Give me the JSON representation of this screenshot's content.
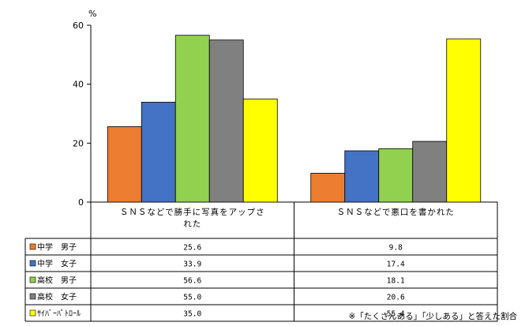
{
  "chart_data": {
    "type": "bar",
    "ylabel": "%",
    "ylim": [
      0,
      60
    ],
    "yticks": [
      0,
      20,
      40,
      60
    ],
    "grid": false,
    "legend": "table-below",
    "categories": [
      "ＳＮＳなどで勝手に写真をアップされた",
      "ＳＮＳなどで悪口を書かれた"
    ],
    "series": [
      {
        "name": "中学　男子",
        "color": "#ED7D31",
        "values": [
          25.6,
          9.8
        ]
      },
      {
        "name": "中学　女子",
        "color": "#4472C4",
        "values": [
          33.9,
          17.4
        ]
      },
      {
        "name": "高校　男子",
        "color": "#92D050",
        "values": [
          56.6,
          18.1
        ]
      },
      {
        "name": "高校　女子",
        "color": "#808080",
        "values": [
          55.0,
          20.6
        ]
      },
      {
        "name": "ｻｲﾊﾞｰﾊﾟﾄﾛｰﾙ",
        "color": "#FFFF00",
        "values": [
          35.0,
          55.4
        ]
      }
    ],
    "annotation": "※「たくさんある」「少しある」と答えた割合"
  }
}
